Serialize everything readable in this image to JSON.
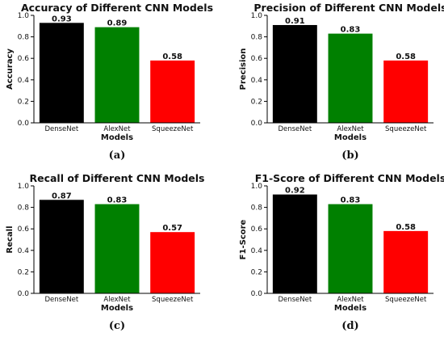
{
  "chart_data": [
    {
      "type": "bar",
      "title": "Accuracy of Different CNN Models",
      "xlabel": "Models",
      "ylabel": "Accuracy",
      "categories": [
        "DenseNet",
        "AlexNet",
        "SqueezeNet"
      ],
      "values": [
        0.93,
        0.89,
        0.58
      ],
      "value_labels": [
        "0.93",
        "0.89",
        "0.58"
      ],
      "colors": [
        "#000000",
        "#008000",
        "#ff0000"
      ],
      "ylim": [
        0,
        1.0
      ],
      "yticks": [
        "0.0",
        "0.2",
        "0.4",
        "0.6",
        "0.8",
        "1.0"
      ],
      "caption": "(a)"
    },
    {
      "type": "bar",
      "title": "Precision of Different CNN Models",
      "xlabel": "Models",
      "ylabel": "Precision",
      "categories": [
        "DenseNet",
        "AlexNet",
        "SqueezeNet"
      ],
      "values": [
        0.91,
        0.83,
        0.58
      ],
      "value_labels": [
        "0.91",
        "0.83",
        "0.58"
      ],
      "colors": [
        "#000000",
        "#008000",
        "#ff0000"
      ],
      "ylim": [
        0,
        1.0
      ],
      "yticks": [
        "0.0",
        "0.2",
        "0.4",
        "0.6",
        "0.8",
        "1.0"
      ],
      "caption": "(b)"
    },
    {
      "type": "bar",
      "title": "Recall of Different CNN Models",
      "xlabel": "Models",
      "ylabel": "Recall",
      "categories": [
        "DenseNet",
        "AlexNet",
        "SqueezeNet"
      ],
      "values": [
        0.87,
        0.83,
        0.57
      ],
      "value_labels": [
        "0.87",
        "0.83",
        "0.57"
      ],
      "colors": [
        "#000000",
        "#008000",
        "#ff0000"
      ],
      "ylim": [
        0,
        1.0
      ],
      "yticks": [
        "0.0",
        "0.2",
        "0.4",
        "0.6",
        "0.8",
        "1.0"
      ],
      "caption": "(c)"
    },
    {
      "type": "bar",
      "title": "F1-Score of Different CNN Models",
      "xlabel": "Models",
      "ylabel": "F1-Score",
      "categories": [
        "DenseNet",
        "AlexNet",
        "SqueezeNet"
      ],
      "values": [
        0.92,
        0.83,
        0.58
      ],
      "value_labels": [
        "0.92",
        "0.83",
        "0.58"
      ],
      "colors": [
        "#000000",
        "#008000",
        "#ff0000"
      ],
      "ylim": [
        0,
        1.0
      ],
      "yticks": [
        "0.0",
        "0.2",
        "0.4",
        "0.6",
        "0.8",
        "1.0"
      ],
      "caption": "(d)"
    }
  ]
}
